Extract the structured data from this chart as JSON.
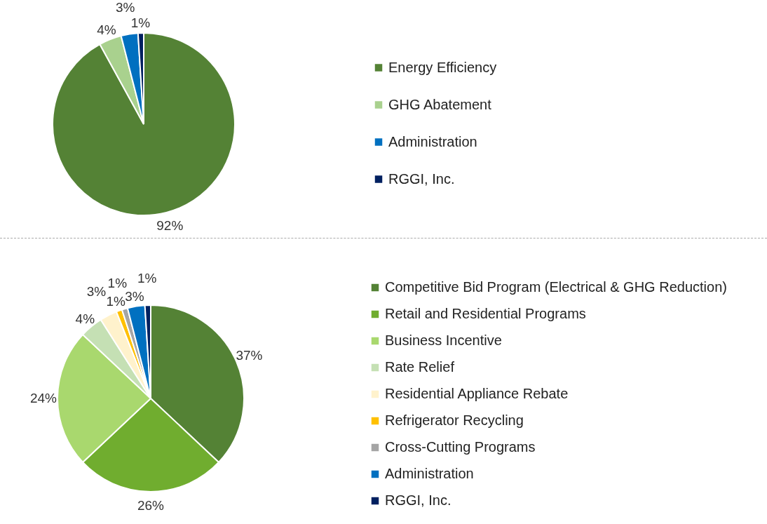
{
  "chart_data": [
    {
      "type": "pie",
      "categories": [
        "Energy Efficiency",
        "GHG Abatement",
        "Administration",
        "RGGI, Inc."
      ],
      "values": [
        92,
        4,
        3,
        1
      ],
      "colors": [
        "#548235",
        "#a9d18e",
        "#0070c0",
        "#002060"
      ],
      "value_labels": [
        "92%",
        "4%",
        "3%",
        "1%"
      ],
      "legend": "right"
    },
    {
      "type": "pie",
      "categories": [
        "Competitive Bid Program (Electrical & GHG Reduction)",
        "Retail and Residential Programs",
        "Business Incentive",
        "Rate Relief",
        "Residential Appliance Rebate",
        "Refrigerator Recycling",
        "Cross-Cutting Programs",
        "Administration",
        "RGGI, Inc."
      ],
      "values": [
        37,
        26,
        24,
        4,
        3,
        1,
        1,
        3,
        1
      ],
      "colors": [
        "#548235",
        "#70ad2f",
        "#a9d86e",
        "#c5e0b4",
        "#fff2cc",
        "#ffc000",
        "#a5a5a5",
        "#0070c0",
        "#002060"
      ],
      "value_labels": [
        "37%",
        "26%",
        "24%",
        "4%",
        "3%",
        "1%",
        "1%",
        "3%",
        "1%"
      ],
      "legend": "right"
    }
  ]
}
